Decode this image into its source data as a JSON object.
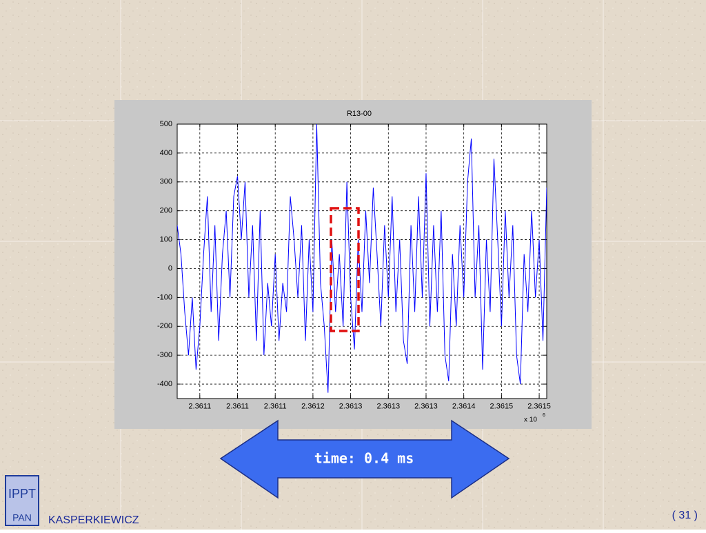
{
  "chart_data": {
    "type": "line",
    "title": "R13-00",
    "x": [
      2.36105,
      2.361055,
      2.36106,
      2.361065,
      2.36107,
      2.361075,
      2.36108,
      2.361085,
      2.36109,
      2.361095,
      2.3611,
      2.361105,
      2.36111,
      2.361115,
      2.36112,
      2.361125,
      2.36113,
      2.361135,
      2.36114,
      2.361145,
      2.36115,
      2.361155,
      2.36116,
      2.361165,
      2.36117,
      2.361175,
      2.36118,
      2.361185,
      2.36119,
      2.361195,
      2.3612,
      2.361205,
      2.36121,
      2.361215,
      2.36122,
      2.361225,
      2.36123,
      2.361235,
      2.36124,
      2.361245,
      2.36125,
      2.361255,
      2.36126,
      2.361265,
      2.36127,
      2.361275,
      2.36128,
      2.361285,
      2.36129,
      2.361295,
      2.3613,
      2.361305,
      2.36131,
      2.361315,
      2.36132,
      2.361325,
      2.36133,
      2.361335,
      2.36134,
      2.361345,
      2.36135,
      2.361355,
      2.36136,
      2.361365,
      2.36137,
      2.361375,
      2.36138,
      2.361385,
      2.36139,
      2.361395,
      2.3614,
      2.361405,
      2.36141,
      2.361415,
      2.36142,
      2.361425,
      2.36143,
      2.361435,
      2.36144,
      2.361445,
      2.36145,
      2.361455,
      2.36146,
      2.361465,
      2.36147,
      2.361475,
      2.36148,
      2.361485,
      2.36149,
      2.361495,
      2.3615,
      2.361505,
      2.36151,
      2.361515,
      2.36152,
      2.361525,
      2.36153,
      2.361535,
      2.36154
    ],
    "values": [
      150,
      50,
      -150,
      -300,
      -100,
      -350,
      -200,
      50,
      250,
      -150,
      150,
      -250,
      50,
      200,
      -100,
      250,
      320,
      100,
      300,
      -100,
      150,
      -250,
      200,
      -300,
      -50,
      -200,
      50,
      -250,
      -50,
      -150,
      250,
      100,
      -100,
      150,
      -250,
      100,
      -150,
      500,
      -50,
      -200,
      -430,
      100,
      -150,
      50,
      -200,
      300,
      -100,
      -280,
      100,
      -150,
      200,
      -50,
      280,
      50,
      -200,
      150,
      -100,
      250,
      -150,
      100,
      -250,
      -330,
      150,
      -150,
      250,
      -100,
      330,
      -200,
      150,
      -150,
      200,
      -300,
      -390,
      50,
      -200,
      150,
      -100,
      300,
      450,
      -100,
      150,
      -350,
      100,
      -150,
      380,
      100,
      -200,
      200,
      -100,
      150,
      -300,
      -400,
      50,
      -150,
      200,
      -100,
      100,
      -250,
      280
    ],
    "color": "#0000ff",
    "xlim": [
      2.36105,
      2.36154
    ],
    "xticks": [
      {
        "value": 2.36108,
        "label": "2.3611"
      },
      {
        "value": 2.36113,
        "label": "2.3611"
      },
      {
        "value": 2.36118,
        "label": "2.3611"
      },
      {
        "value": 2.36123,
        "label": "2.3612"
      },
      {
        "value": 2.36128,
        "label": "2.3613"
      },
      {
        "value": 2.36133,
        "label": "2.3613"
      },
      {
        "value": 2.36138,
        "label": "2.3613"
      },
      {
        "value": 2.36143,
        "label": "2.3614"
      },
      {
        "value": 2.36148,
        "label": "2.3615"
      },
      {
        "value": 2.36153,
        "label": "2.3615"
      }
    ],
    "x_multiplier": {
      "base": "x 10",
      "exponent": "6"
    },
    "ylim": [
      -450,
      500
    ],
    "yticks": [
      -400,
      -300,
      -200,
      -100,
      0,
      100,
      200,
      300,
      400,
      500
    ],
    "grid": true
  },
  "slide": {
    "arrow_label": "time: 0.4 ms",
    "logo": {
      "top": "IPPT",
      "bottom": "PAN"
    },
    "author": "KASPERKIEWICZ",
    "page_number": "( 31 )"
  }
}
